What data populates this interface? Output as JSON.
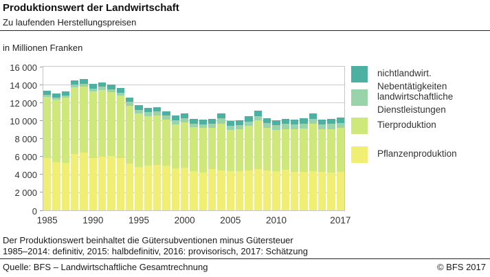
{
  "header": {
    "title": "Produktionswert der Landwirtschaft",
    "subtitle": "Zu laufenden Herstellungspreisen"
  },
  "unit_label": "in Millionen Franken",
  "chart_data": {
    "type": "bar",
    "stacked": true,
    "title": "Produktionswert der Landwirtschaft",
    "ylabel": "in Millionen Franken",
    "ylim": [
      0,
      16000
    ],
    "grid": true,
    "legend_position": "right",
    "categories": [
      1985,
      1986,
      1987,
      1988,
      1989,
      1990,
      1991,
      1992,
      1993,
      1994,
      1995,
      1996,
      1997,
      1998,
      1999,
      2000,
      2001,
      2002,
      2003,
      2004,
      2005,
      2006,
      2007,
      2008,
      2009,
      2010,
      2011,
      2012,
      2013,
      2014,
      2015,
      2016,
      2017
    ],
    "series": [
      {
        "name": "Pflanzenproduktion",
        "color": "#f1ee74",
        "values": [
          5800,
          5350,
          5300,
          6280,
          6430,
          5850,
          5980,
          6030,
          5850,
          5220,
          4840,
          4970,
          5090,
          4970,
          4710,
          4760,
          4340,
          4210,
          4590,
          4460,
          4340,
          4340,
          4460,
          4590,
          4410,
          4340,
          4510,
          4270,
          4300,
          4350,
          4270,
          4200,
          4300
        ]
      },
      {
        "name": "Tierproduktion",
        "color": "#cee87b",
        "values": [
          6850,
          6950,
          7250,
          7440,
          7380,
          7390,
          7450,
          7130,
          6920,
          6420,
          5950,
          5520,
          5480,
          5140,
          4890,
          5070,
          4910,
          4960,
          4580,
          5220,
          4590,
          4660,
          4920,
          5420,
          4760,
          4590,
          4560,
          4730,
          4820,
          5280,
          4730,
          4860,
          4870
        ]
      },
      {
        "name": "landwirtschaftliche Dienstleistungen",
        "color": "#99d3aa",
        "values": [
          230,
          240,
          250,
          290,
          300,
          320,
          330,
          340,
          350,
          430,
          400,
          450,
          450,
          430,
          430,
          430,
          430,
          410,
          510,
          580,
          500,
          500,
          510,
          510,
          580,
          580,
          560,
          580,
          560,
          560,
          580,
          580,
          580
        ]
      },
      {
        "name": "nichtlandwirt. Nebentätigkeiten",
        "color": "#4db1a1",
        "values": [
          450,
          460,
          480,
          490,
          500,
          500,
          500,
          500,
          510,
          460,
          500,
          500,
          500,
          500,
          510,
          510,
          510,
          510,
          510,
          510,
          510,
          510,
          560,
          580,
          510,
          510,
          560,
          560,
          580,
          580,
          560,
          560,
          560
        ]
      }
    ],
    "y_ticks": [
      "16 000",
      "14 000",
      "12 000",
      "10 000",
      "8 000",
      "6 000",
      "4 000",
      "2 000",
      "0"
    ],
    "x_tick_years": [
      1985,
      1990,
      1995,
      2000,
      2005,
      2010,
      2017
    ]
  },
  "legend": {
    "items": [
      {
        "label": "nichtlandwirt.\nNebentätigkeiten",
        "color": "#4db1a1"
      },
      {
        "label": "landwirtschaftliche\nDienstleistungen",
        "color": "#99d3aa"
      },
      {
        "label": "Tierproduktion",
        "color": "#cee87b"
      },
      {
        "label": "Pflanzenproduktion",
        "color": "#f1ee74"
      }
    ]
  },
  "footnotes": {
    "line1": "Der Produktionswert beinhaltet die Gütersubventionen minus Gütersteuer",
    "line2": "1985–2014: definitiv, 2015: halbdefinitiv, 2016: provisorisch, 2017: Schätzung"
  },
  "source": {
    "left": "Quelle: BFS – Landwirtschaftliche Gesamtrechnung",
    "right": "© BFS  2017"
  }
}
